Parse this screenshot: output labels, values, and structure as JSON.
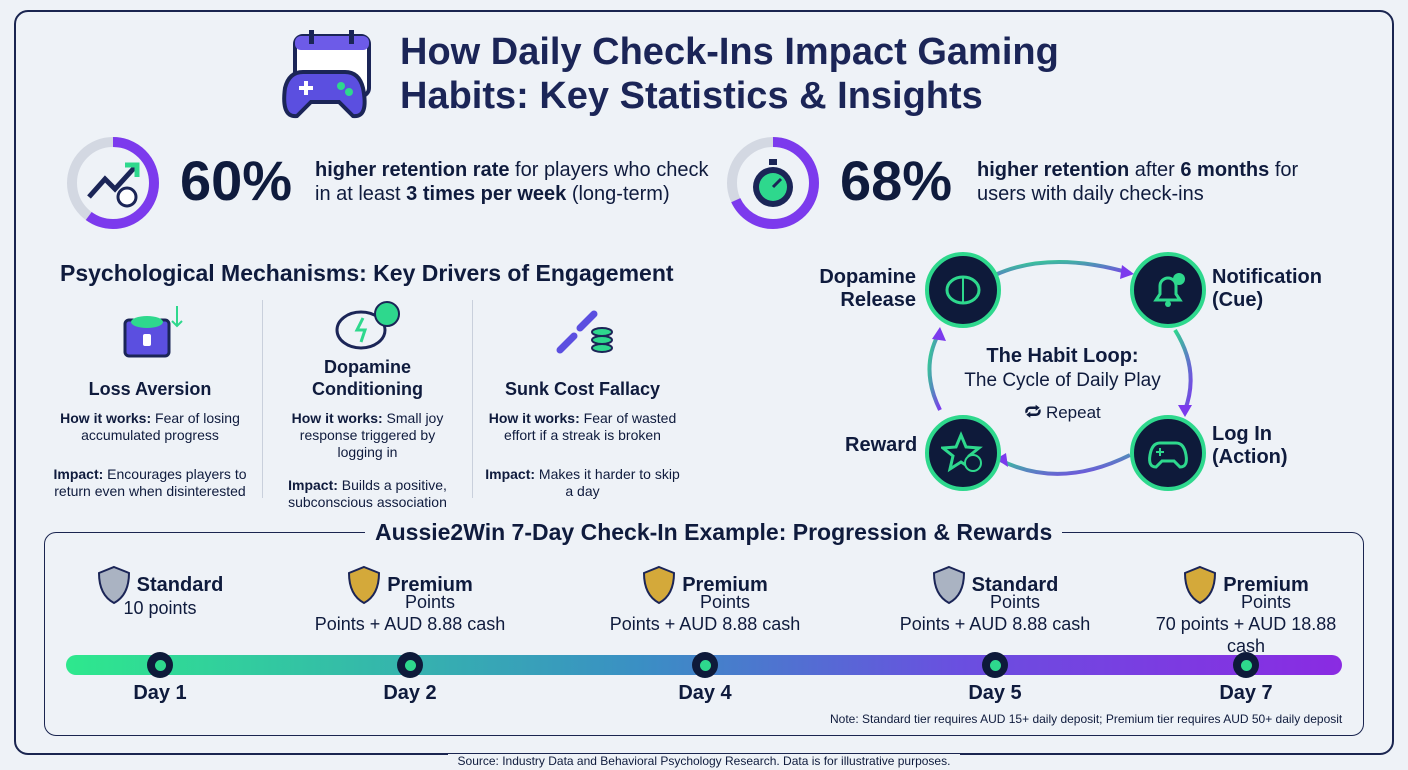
{
  "title_line1": "How Daily Check-Ins Impact Gaming",
  "title_line2": "Habits: Key Statistics & Insights",
  "colors": {
    "navy": "#0f1b3d",
    "green": "#2ed88d",
    "purple": "#7c3aed",
    "gold": "#d4a93a",
    "silver": "#9aa6b8"
  },
  "stats": [
    {
      "value": "60%",
      "bold1": "higher retention rate",
      "text1": " for players who check in at least ",
      "bold2": "3 times per week",
      "text2": " (long-term)",
      "icon": "trend-up-clock-icon",
      "progress": 0.6
    },
    {
      "value": "68%",
      "bold1": "higher retention",
      "text1": " after ",
      "bold2": "6 months",
      "text2": " for users with daily check-ins",
      "icon": "stopwatch-icon",
      "progress": 0.68
    }
  ],
  "mechanisms": {
    "heading": "Psychological Mechanisms: Key Drivers of Engagement",
    "items": [
      {
        "name": "Loss Aversion",
        "how_label": "How it works:",
        "how": " Fear of losing accumulated progress",
        "impact_label": "Impact:",
        "impact": " Encourages players to return even when disinterested",
        "icon": "treasure-chest-icon"
      },
      {
        "name": "Dopamine Conditioning",
        "how_label": "How it works:",
        "how": " Small joy response triggered by logging in",
        "impact_label": "Impact:",
        "impact": " Builds a positive, subconscious association",
        "icon": "brain-smile-icon"
      },
      {
        "name": "Sunk Cost Fallacy",
        "how_label": "How it works:",
        "how": " Fear of wasted effort if a streak is broken",
        "impact_label": "Impact:",
        "impact": " Makes it harder to skip a day",
        "icon": "broken-chain-coins-icon"
      }
    ]
  },
  "habit_loop": {
    "title": "The Habit Loop:",
    "subtitle": "The Cycle of Daily Play",
    "repeat": "Repeat",
    "nodes": [
      {
        "label1": "Dopamine",
        "label2": "Release",
        "icon": "brain-icon"
      },
      {
        "label1": "Notification",
        "label2": "(Cue)",
        "icon": "bell-icon"
      },
      {
        "label1": "Log In",
        "label2": "(Action)",
        "icon": "gamepad-icon"
      },
      {
        "label1": "Reward",
        "label2": "",
        "icon": "star-coin-icon"
      }
    ]
  },
  "timeline": {
    "heading": "Aussie2Win 7-Day Check-In Example: Progression & Rewards",
    "days": [
      {
        "tier": "Standard",
        "sub": "",
        "reward": "10 points",
        "day": "Day 1",
        "shield": "silver"
      },
      {
        "tier": "Premium",
        "sub": "Points",
        "reward": "Points + AUD 8.88 cash",
        "day": "Day 2",
        "shield": "gold"
      },
      {
        "tier": "Premium",
        "sub": "Points",
        "reward": "Points + AUD 8.88 cash",
        "day": "Day 4",
        "shield": "gold"
      },
      {
        "tier": "Standard",
        "sub": "Points",
        "reward": "Points + AUD 8.88 cash",
        "day": "Day 5",
        "shield": "silver"
      },
      {
        "tier": "Premium",
        "sub": "Points",
        "reward": "70 points + AUD 18.88 cash",
        "day": "Day 7",
        "shield": "gold"
      }
    ],
    "note": "Note: Standard tier requires AUD 15+ daily deposit; Premium tier requires AUD 50+ daily deposit"
  },
  "source": "Source: Industry Data and Behavioral Psychology Research. Data is for illustrative purposes."
}
